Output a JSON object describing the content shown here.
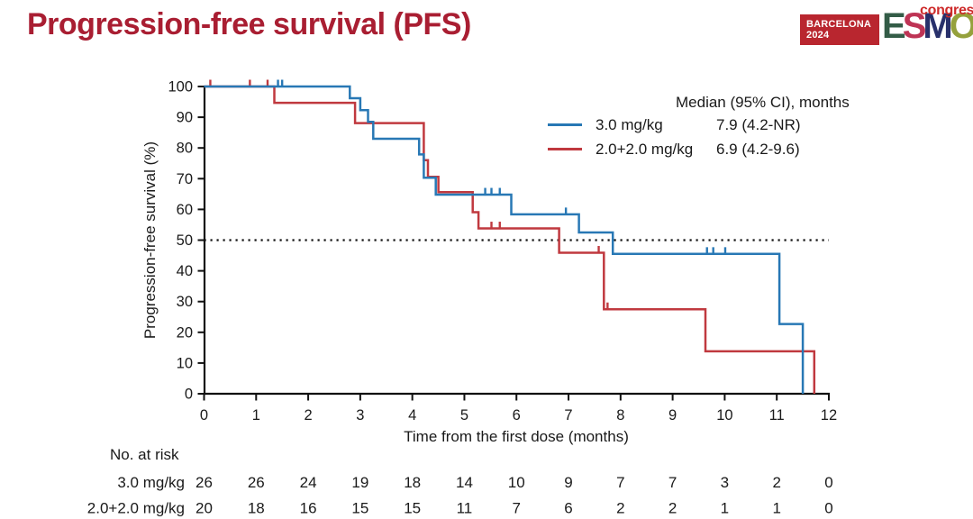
{
  "header": {
    "title": "Progression-free survival (PFS)"
  },
  "logo": {
    "venue": "BARCELONA",
    "year": "2024",
    "letters": [
      {
        "char": "E",
        "color": "#335C47"
      },
      {
        "char": "S",
        "color": "#BE3455"
      },
      {
        "char": "M",
        "color": "#28306B"
      },
      {
        "char": "O",
        "color": "#95A13C"
      }
    ],
    "congress": "congress",
    "box_color": "#B9262F"
  },
  "chart_data": {
    "type": "line",
    "subtype": "kaplan-meier-step",
    "xlabel": "Time from the first dose (months)",
    "ylabel": "Progression-free survival (%)",
    "xlim": [
      0,
      12
    ],
    "ylim": [
      0,
      100
    ],
    "xticks": [
      0,
      1,
      2,
      3,
      4,
      5,
      6,
      7,
      8,
      9,
      10,
      11,
      12
    ],
    "yticks": [
      0,
      10,
      20,
      30,
      40,
      50,
      60,
      70,
      80,
      90,
      100
    ],
    "grid": false,
    "reference_line_y": 50,
    "legend_position": "top-right",
    "legend": {
      "header": "Median (95% CI), months",
      "entries": [
        {
          "name": "3.0 mg/kg",
          "median": "7.9 (4.2-NR)",
          "color": "#2878B5"
        },
        {
          "name": "2.0+2.0 mg/kg",
          "median": "6.9 (4.2-9.6)",
          "color": "#C0393F"
        }
      ]
    },
    "series": [
      {
        "name": "2.0+2.0 mg/kg",
        "color": "#C0393F",
        "steps": [
          [
            0,
            100
          ],
          [
            1.35,
            100
          ],
          [
            1.35,
            94.7
          ],
          [
            2.9,
            94.7
          ],
          [
            2.9,
            88.1
          ],
          [
            4.22,
            88.1
          ],
          [
            4.22,
            76.0
          ],
          [
            4.3,
            76.0
          ],
          [
            4.3,
            70.6
          ],
          [
            4.5,
            70.6
          ],
          [
            4.5,
            65.6
          ],
          [
            5.16,
            65.6
          ],
          [
            5.16,
            59.1
          ],
          [
            5.27,
            59.1
          ],
          [
            5.27,
            53.8
          ],
          [
            6.82,
            53.8
          ],
          [
            6.82,
            45.9
          ],
          [
            7.68,
            45.9
          ],
          [
            7.68,
            27.5
          ],
          [
            9.63,
            27.5
          ],
          [
            9.63,
            13.8
          ],
          [
            11.72,
            13.8
          ],
          [
            11.72,
            0
          ]
        ],
        "censors": [
          [
            0.12,
            100
          ],
          [
            0.88,
            100
          ],
          [
            1.22,
            100
          ],
          [
            5.52,
            53.8
          ],
          [
            5.68,
            53.8
          ],
          [
            7.58,
            45.9
          ],
          [
            7.75,
            27.5
          ]
        ]
      },
      {
        "name": "3.0 mg/kg",
        "color": "#2878B5",
        "steps": [
          [
            0,
            100
          ],
          [
            2.8,
            100
          ],
          [
            2.8,
            96.2
          ],
          [
            3.0,
            96.2
          ],
          [
            3.0,
            92.3
          ],
          [
            3.15,
            92.3
          ],
          [
            3.15,
            88.5
          ],
          [
            3.25,
            88.5
          ],
          [
            3.25,
            83.0
          ],
          [
            4.13,
            83.0
          ],
          [
            4.13,
            77.9
          ],
          [
            4.22,
            77.9
          ],
          [
            4.22,
            70.3
          ],
          [
            4.45,
            70.3
          ],
          [
            4.45,
            64.8
          ],
          [
            5.9,
            64.8
          ],
          [
            5.9,
            58.4
          ],
          [
            7.2,
            58.4
          ],
          [
            7.2,
            52.5
          ],
          [
            7.85,
            52.5
          ],
          [
            7.85,
            45.5
          ],
          [
            11.05,
            45.5
          ],
          [
            11.05,
            22.7
          ],
          [
            11.5,
            22.7
          ],
          [
            11.5,
            0
          ]
        ],
        "censors": [
          [
            1.42,
            100
          ],
          [
            1.5,
            100
          ],
          [
            5.4,
            64.8
          ],
          [
            5.52,
            64.8
          ],
          [
            5.68,
            64.8
          ],
          [
            6.95,
            58.4
          ],
          [
            9.66,
            45.5
          ],
          [
            9.78,
            45.5
          ],
          [
            10.01,
            45.5
          ]
        ]
      }
    ],
    "risk_table": {
      "title": "No. at risk",
      "timepoints": [
        0,
        1,
        2,
        3,
        4,
        5,
        6,
        7,
        8,
        9,
        10,
        11,
        12
      ],
      "rows": [
        {
          "label": "3.0 mg/kg",
          "values": [
            26,
            26,
            24,
            19,
            18,
            14,
            10,
            9,
            7,
            7,
            3,
            2,
            0
          ]
        },
        {
          "label": "2.0+2.0 mg/kg",
          "values": [
            20,
            18,
            16,
            15,
            15,
            11,
            7,
            6,
            2,
            2,
            1,
            1,
            0
          ]
        }
      ]
    }
  }
}
